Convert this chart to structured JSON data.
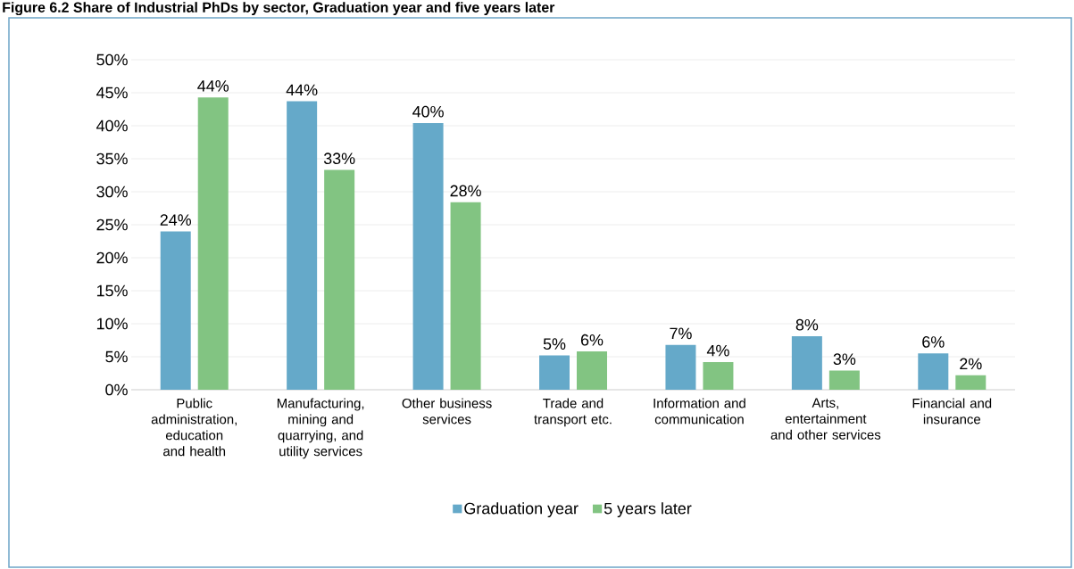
{
  "chart_data": {
    "type": "bar",
    "title": "Figure 6.2 Share of Industrial PhDs by sector, Graduation year and five years later",
    "categories": [
      "Public administration, education and health",
      "Manufacturing, mining and quarrying, and utility services",
      "Other business services",
      "Trade and transport etc.",
      "Information and communication",
      "Arts, entertainment and other services",
      "Financial and insurance"
    ],
    "series": [
      {
        "name": "Graduation year",
        "color": "#65a9c9",
        "values": [
          24.0,
          43.7,
          40.4,
          5.2,
          6.8,
          8.1,
          5.5
        ],
        "value_labels": [
          "24%",
          "44%",
          "40%",
          "5%",
          "7%",
          "8%",
          "6%"
        ]
      },
      {
        "name": "5 years later",
        "color": "#82c482",
        "values": [
          44.3,
          33.3,
          28.4,
          5.8,
          4.2,
          2.9,
          2.2
        ],
        "value_labels": [
          "44%",
          "33%",
          "28%",
          "6%",
          "4%",
          "3%",
          "2%"
        ]
      }
    ],
    "ylim": [
      0,
      50
    ],
    "yticks": [
      {
        "value": 0,
        "label": "0%"
      },
      {
        "value": 5,
        "label": "5%"
      },
      {
        "value": 10,
        "label": "10%"
      },
      {
        "value": 15,
        "label": "15%"
      },
      {
        "value": 20,
        "label": "20%"
      },
      {
        "value": 25,
        "label": "25%"
      },
      {
        "value": 30,
        "label": "30%"
      },
      {
        "value": 35,
        "label": "35%"
      },
      {
        "value": 40,
        "label": "40%"
      },
      {
        "value": 45,
        "label": "45%"
      },
      {
        "value": 50,
        "label": "50%"
      }
    ],
    "grid": "y",
    "legend": "bottom"
  }
}
